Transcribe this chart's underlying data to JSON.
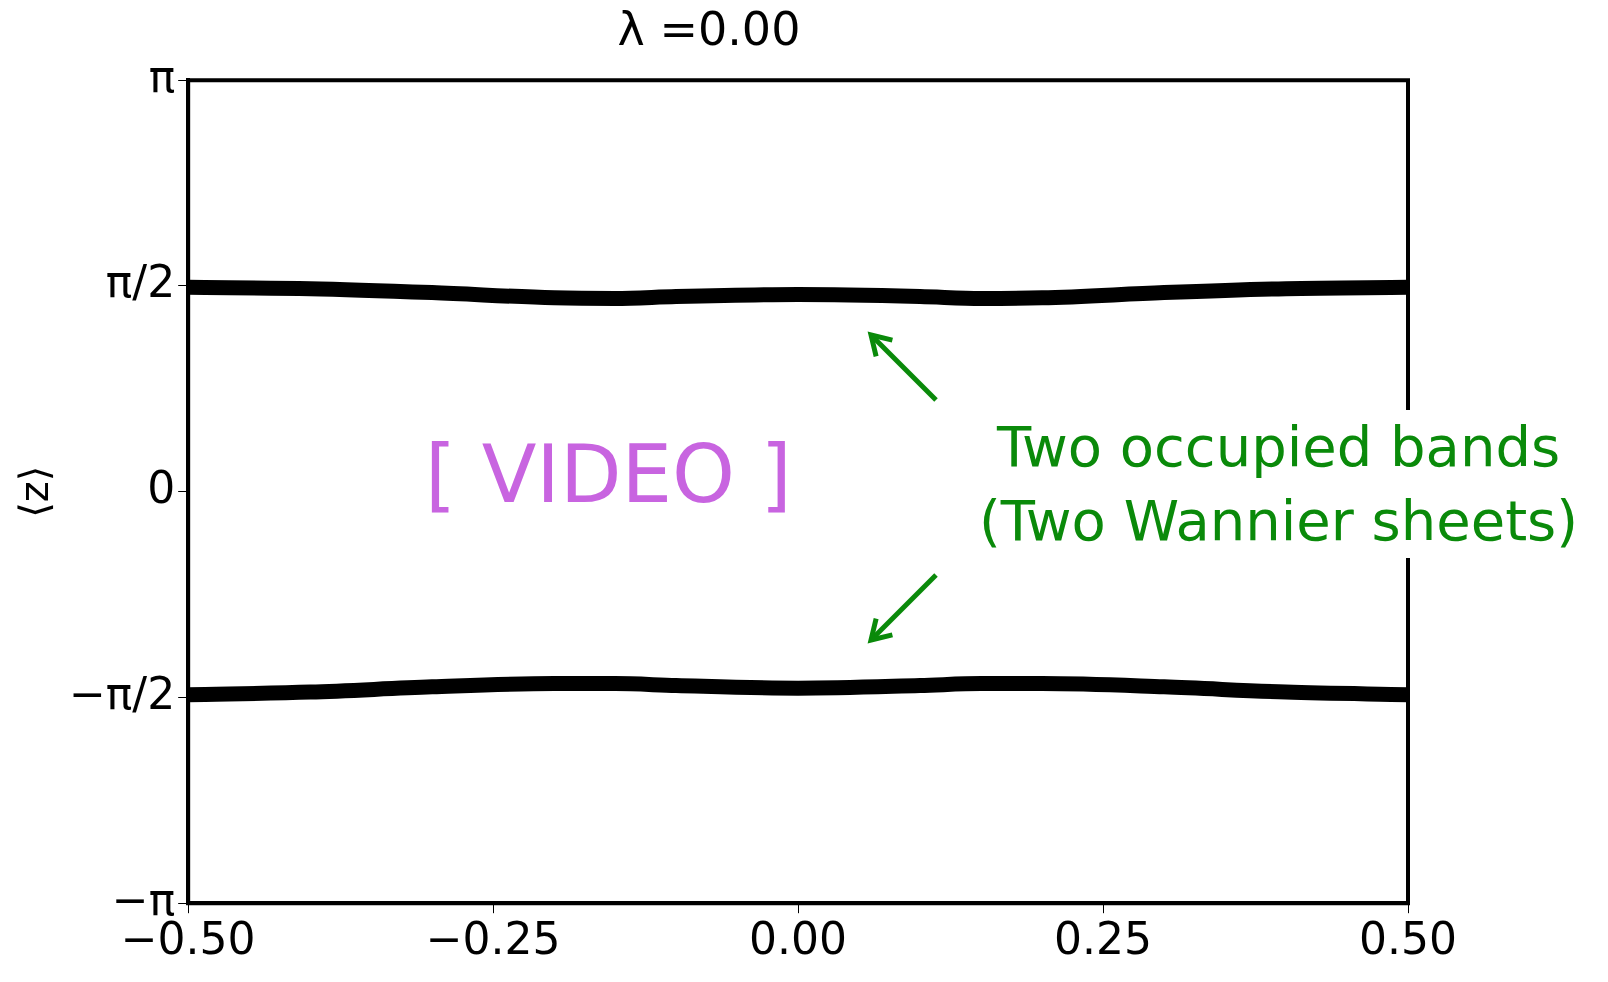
{
  "chart_data": {
    "type": "line",
    "title": "λ =0.00",
    "ylabel": "⟨z⟩",
    "xlim": [
      -0.5,
      0.5
    ],
    "xticks": [
      {
        "value": -0.5,
        "label": "−0.50"
      },
      {
        "value": -0.25,
        "label": "−0.25"
      },
      {
        "value": 0,
        "label": "0.00"
      },
      {
        "value": 0.25,
        "label": "0.25"
      },
      {
        "value": 0.5,
        "label": "0.50"
      }
    ],
    "ylim": [
      -3.1416,
      3.1416
    ],
    "yticks": [
      {
        "value": -3.1416,
        "label": "−π"
      },
      {
        "value": -1.5708,
        "label": "−π/2"
      },
      {
        "value": 0,
        "label": "0"
      },
      {
        "value": 1.5708,
        "label": "π/2"
      },
      {
        "value": 3.1416,
        "label": "π"
      }
    ],
    "series": [
      {
        "color": "#000000",
        "x": [
          -0.5,
          -0.4,
          -0.3,
          -0.2,
          -0.15,
          -0.1,
          0,
          0.1,
          0.15,
          0.2,
          0.3,
          0.4,
          0.5
        ],
        "values": [
          1.56,
          1.55,
          1.52,
          1.48,
          1.475,
          1.49,
          1.505,
          1.49,
          1.475,
          1.48,
          1.52,
          1.55,
          1.56
        ]
      },
      {
        "color": "#000000",
        "x": [
          -0.5,
          -0.4,
          -0.3,
          -0.2,
          -0.15,
          -0.1,
          0,
          0.1,
          0.15,
          0.2,
          0.3,
          0.4,
          0.5
        ],
        "values": [
          -1.55,
          -1.53,
          -1.49,
          -1.465,
          -1.465,
          -1.48,
          -1.5,
          -1.48,
          -1.465,
          -1.465,
          -1.49,
          -1.53,
          -1.55
        ]
      }
    ],
    "marker": "none",
    "line_style": "solid",
    "grid": false,
    "legend": false,
    "annotations": [
      "[ VIDEO ]",
      "Two occupied bands\n(Two Wannier sheets)"
    ]
  }
}
